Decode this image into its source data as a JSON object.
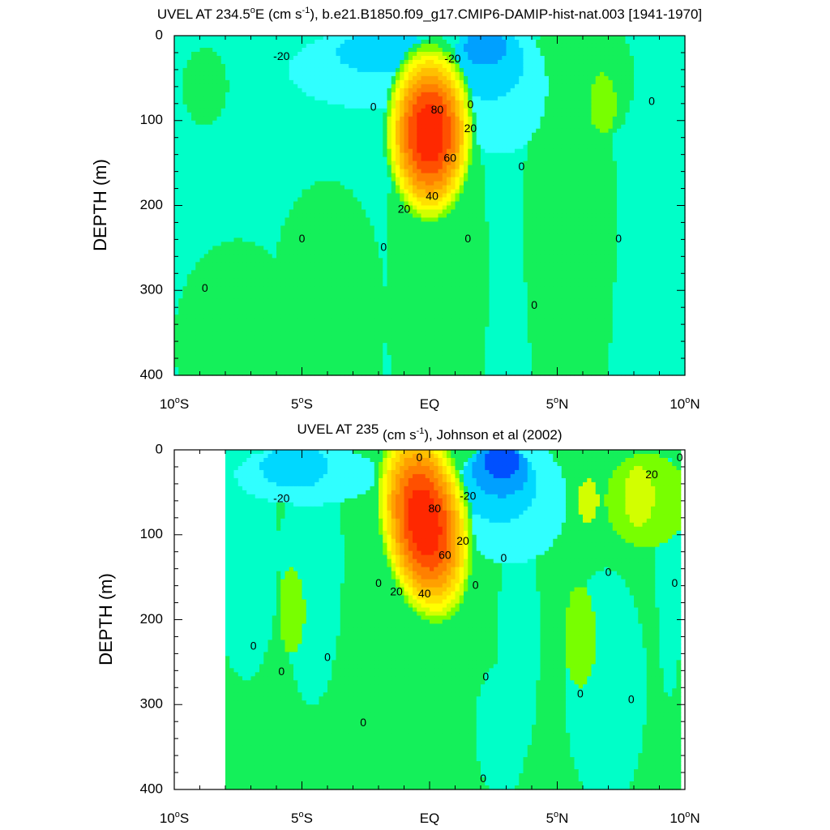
{
  "chart_data": [
    {
      "type": "heatmap",
      "title": {
        "pre": "UVEL AT 234.5",
        "deg": "o",
        "mid1": "E (cm s",
        "sup": "-1",
        "post": "), b.e21.B1850.f09_g17.CMIP6-DAMIP-hist-nat.003 [1941-1970]"
      },
      "ylabel": "DEPTH (m)",
      "xlim": [
        -10,
        10
      ],
      "ylim": [
        0,
        400
      ],
      "y_inverted": true,
      "x_ticks": [
        {
          "value": -10,
          "num": "10",
          "deg": "o",
          "hemi": "S"
        },
        {
          "value": -5,
          "num": "5",
          "deg": "o",
          "hemi": "S"
        },
        {
          "value": 0,
          "num": "EQ",
          "deg": "",
          "hemi": ""
        },
        {
          "value": 5,
          "num": "5",
          "deg": "o",
          "hemi": "N"
        },
        {
          "value": 10,
          "num": "10",
          "deg": "o",
          "hemi": "N"
        }
      ],
      "y_ticks": [
        0,
        100,
        200,
        300,
        400
      ],
      "data_lon_range": [
        -10,
        10
      ],
      "background_level": 0,
      "features": [
        {
          "level": 1,
          "lon": -8.8,
          "depth": 60,
          "width": 0.9,
          "height": 45
        },
        {
          "level": 1,
          "lon": -7.5,
          "depth": 360,
          "width": 2.5,
          "height": 120
        },
        {
          "level": 1,
          "lon": -4.0,
          "depth": 330,
          "width": 2.3,
          "height": 160
        },
        {
          "level": 1,
          "lon": 0.3,
          "depth": 280,
          "width": 2.0,
          "height": 280
        },
        {
          "level": 1,
          "lon": 5.5,
          "depth": 220,
          "width": 1.8,
          "height": 300
        },
        {
          "level": 1,
          "lon": 6.8,
          "depth": 50,
          "width": 1.2,
          "height": 70
        },
        {
          "level": 2,
          "lon": 6.8,
          "depth": 80,
          "width": 0.5,
          "height": 35
        },
        {
          "level": -1,
          "lon": -2.5,
          "depth": 40,
          "width": 3.0,
          "height": 45
        },
        {
          "level": -1,
          "lon": 2.8,
          "depth": 60,
          "width": 1.8,
          "height": 80
        },
        {
          "level": -2,
          "lon": -1.8,
          "depth": 20,
          "width": 1.8,
          "height": 25
        },
        {
          "level": -2,
          "lon": 2.3,
          "depth": 30,
          "width": 1.4,
          "height": 45
        },
        {
          "level": -3,
          "lon": 2.2,
          "depth": 15,
          "width": 0.8,
          "height": 20
        }
      ],
      "jet": {
        "lon": 0.0,
        "depth": 115,
        "half_width": 1.8,
        "half_height": 110,
        "core_value": 100,
        "axis_tilt": 0.0
      },
      "contour_labels": [
        {
          "text": "-20",
          "lon": -5.8,
          "depth": 25
        },
        {
          "text": "-20",
          "lon": 0.9,
          "depth": 28
        },
        {
          "text": "0",
          "lon": -2.2,
          "depth": 85
        },
        {
          "text": "80",
          "lon": 0.3,
          "depth": 88
        },
        {
          "text": "0",
          "lon": 1.6,
          "depth": 82
        },
        {
          "text": "20",
          "lon": 1.6,
          "depth": 110
        },
        {
          "text": "0",
          "lon": 8.7,
          "depth": 78
        },
        {
          "text": "60",
          "lon": 0.8,
          "depth": 145
        },
        {
          "text": "0",
          "lon": 3.6,
          "depth": 155
        },
        {
          "text": "40",
          "lon": 0.1,
          "depth": 190
        },
        {
          "text": "20",
          "lon": -1.0,
          "depth": 205
        },
        {
          "text": "0",
          "lon": -5.0,
          "depth": 240
        },
        {
          "text": "0",
          "lon": 1.5,
          "depth": 240
        },
        {
          "text": "0",
          "lon": 7.4,
          "depth": 240
        },
        {
          "text": "0",
          "lon": -1.8,
          "depth": 250
        },
        {
          "text": "0",
          "lon": -8.8,
          "depth": 298
        },
        {
          "text": "0",
          "lon": 4.1,
          "depth": 318
        }
      ]
    },
    {
      "type": "heatmap",
      "title": {
        "pre": "UVEL AT 235",
        "deg": "",
        "mid1": " (cm s",
        "sup": "-1",
        "post": "), Johnson et al (2002)"
      },
      "ylabel": "DEPTH (m)",
      "xlim": [
        -10,
        10
      ],
      "ylim": [
        0,
        400
      ],
      "y_inverted": true,
      "x_ticks": [
        {
          "value": -10,
          "num": "10",
          "deg": "o",
          "hemi": "S"
        },
        {
          "value": -5,
          "num": "5",
          "deg": "o",
          "hemi": "S"
        },
        {
          "value": 0,
          "num": "EQ",
          "deg": "",
          "hemi": ""
        },
        {
          "value": 5,
          "num": "5",
          "deg": "o",
          "hemi": "N"
        },
        {
          "value": 10,
          "num": "10",
          "deg": "o",
          "hemi": "N"
        }
      ],
      "y_ticks": [
        0,
        100,
        200,
        300,
        400
      ],
      "data_lon_range": [
        -8,
        9.8
      ],
      "background_level": 1,
      "features": [
        {
          "level": 0,
          "lon": -7.2,
          "depth": 120,
          "width": 1.3,
          "height": 150
        },
        {
          "level": 0,
          "lon": -4.6,
          "depth": 130,
          "width": 1.2,
          "height": 170
        },
        {
          "level": 0,
          "lon": 3.5,
          "depth": 220,
          "width": 0.8,
          "height": 150
        },
        {
          "level": 0,
          "lon": 6.9,
          "depth": 280,
          "width": 1.6,
          "height": 140
        },
        {
          "level": 0,
          "lon": 9.4,
          "depth": 150,
          "width": 0.5,
          "height": 140
        },
        {
          "level": 0,
          "lon": 2.8,
          "depth": 330,
          "width": 1.0,
          "height": 80
        },
        {
          "level": 2,
          "lon": -5.4,
          "depth": 190,
          "width": 0.5,
          "height": 50
        },
        {
          "level": 2,
          "lon": 5.9,
          "depth": 220,
          "width": 0.6,
          "height": 60
        },
        {
          "level": 2,
          "lon": 8.5,
          "depth": 60,
          "width": 1.6,
          "height": 55
        },
        {
          "level": 3,
          "lon": 8.2,
          "depth": 55,
          "width": 0.6,
          "height": 35
        },
        {
          "level": 3,
          "lon": 6.2,
          "depth": 60,
          "width": 0.4,
          "height": 25
        },
        {
          "level": -1,
          "lon": -4.8,
          "depth": 30,
          "width": 2.8,
          "height": 35
        },
        {
          "level": -1,
          "lon": 3.2,
          "depth": 60,
          "width": 2.2,
          "height": 75
        },
        {
          "level": -2,
          "lon": -5.3,
          "depth": 20,
          "width": 1.3,
          "height": 25
        },
        {
          "level": -2,
          "lon": 2.7,
          "depth": 40,
          "width": 1.5,
          "height": 45
        },
        {
          "level": -3,
          "lon": 2.8,
          "depth": 25,
          "width": 1.1,
          "height": 30
        },
        {
          "level": -4,
          "lon": 2.8,
          "depth": 15,
          "width": 0.7,
          "height": 18
        }
      ],
      "jet": {
        "lon": -0.2,
        "depth": 85,
        "half_width": 1.9,
        "half_height": 125,
        "core_value": 100,
        "axis_tilt": 0.004
      },
      "contour_labels": [
        {
          "text": "0",
          "lon": -0.4,
          "depth": 10
        },
        {
          "text": "0",
          "lon": 9.8,
          "depth": 10
        },
        {
          "text": "20",
          "lon": 8.7,
          "depth": 30
        },
        {
          "text": "-20",
          "lon": -5.8,
          "depth": 58
        },
        {
          "text": "-20",
          "lon": 1.5,
          "depth": 55
        },
        {
          "text": "80",
          "lon": 0.2,
          "depth": 70
        },
        {
          "text": "20",
          "lon": 1.3,
          "depth": 108
        },
        {
          "text": "0",
          "lon": 2.9,
          "depth": 128
        },
        {
          "text": "60",
          "lon": 0.6,
          "depth": 125
        },
        {
          "text": "0",
          "lon": 7.0,
          "depth": 145
        },
        {
          "text": "0",
          "lon": -2.0,
          "depth": 158
        },
        {
          "text": "0",
          "lon": 1.8,
          "depth": 160
        },
        {
          "text": "0",
          "lon": 9.6,
          "depth": 158
        },
        {
          "text": "20",
          "lon": -1.3,
          "depth": 168
        },
        {
          "text": "40",
          "lon": -0.2,
          "depth": 170
        },
        {
          "text": "0",
          "lon": -6.9,
          "depth": 232
        },
        {
          "text": "0",
          "lon": -4.0,
          "depth": 245
        },
        {
          "text": "0",
          "lon": -5.8,
          "depth": 262
        },
        {
          "text": "0",
          "lon": 2.2,
          "depth": 268
        },
        {
          "text": "0",
          "lon": 5.9,
          "depth": 288
        },
        {
          "text": "0",
          "lon": 7.9,
          "depth": 295
        },
        {
          "text": "0",
          "lon": -2.6,
          "depth": 322
        },
        {
          "text": "0",
          "lon": 2.1,
          "depth": 388
        }
      ]
    }
  ],
  "colors": {
    "levels": [
      "#0000c8",
      "#0050ff",
      "#00a0ff",
      "#00d8ff",
      "#30ffff",
      "#00ffc8",
      "#14f05a",
      "#78ff00",
      "#d2ff00",
      "#ffff00",
      "#ffe000",
      "#ffc000",
      "#ffa000",
      "#ff8000",
      "#ff5000",
      "#ff2800",
      "#e60000",
      "#b40000"
    ],
    "zero_index": 5
  }
}
